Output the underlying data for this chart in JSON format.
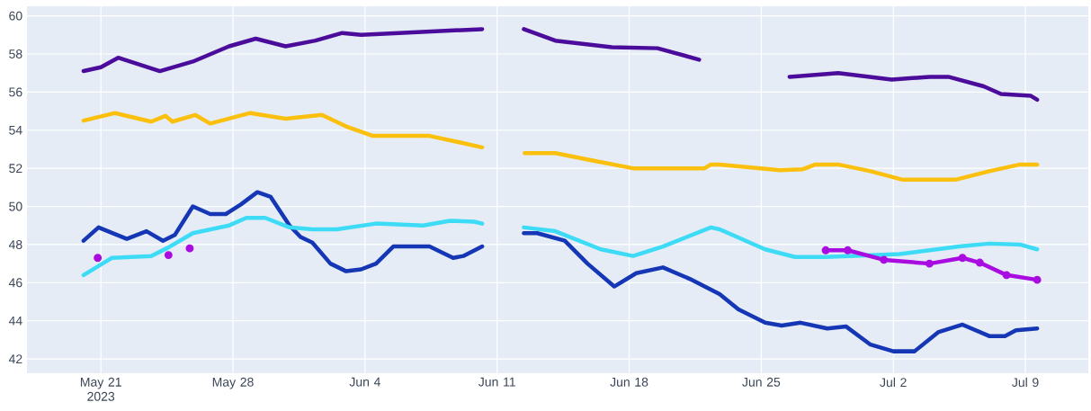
{
  "chart_data": {
    "type": "line",
    "grid": true,
    "xlim": [
      "2023-05-17T02:00",
      "2023-07-12T08:00"
    ],
    "ylim": [
      41.25,
      60.5
    ],
    "xticks": [
      {
        "value": "2023-05-21",
        "label": "May 21 2023"
      },
      {
        "value": "2023-05-28",
        "label": "May 28"
      },
      {
        "value": "2023-06-04",
        "label": "Jun 4"
      },
      {
        "value": "2023-06-11",
        "label": "Jun 11"
      },
      {
        "value": "2023-06-18",
        "label": "Jun 18"
      },
      {
        "value": "2023-06-25",
        "label": "Jun 25"
      },
      {
        "value": "2023-07-02",
        "label": "Jul 2"
      },
      {
        "value": "2023-07-09",
        "label": "Jul 9"
      }
    ],
    "yticks": [
      42,
      44,
      46,
      48,
      50,
      52,
      54,
      56,
      58,
      60
    ],
    "series": [
      {
        "color": "#4b0c9c",
        "x": [
          "2023-05-20T02:00",
          "2023-05-21T00:00",
          "2023-05-21T22:00",
          "2023-05-24T03:00",
          "2023-05-25T21:00",
          "2023-05-27T19:00",
          "2023-05-29T05:00",
          "2023-05-30T19:00",
          "2023-06-01T09:00",
          "2023-06-02T19:00",
          "2023-06-03T19:00",
          "2023-06-05T19:00",
          "2023-06-10T05:00",
          "2023-06-11T08:00",
          "2023-06-12T10:00",
          "2023-06-14T02:00",
          "2023-06-17T02:00",
          "2023-06-19T12:00",
          "2023-06-21T17:00",
          "2023-06-24T00:00",
          "2023-06-26T12:00",
          "2023-06-29T02:00",
          "2023-07-01T22:00",
          "2023-07-03T22:00",
          "2023-07-04T22:00",
          "2023-07-06T19:00",
          "2023-07-07T17:00",
          "2023-07-09T07:00",
          "2023-07-09T15:00"
        ],
        "values": [
          57.1,
          57.3,
          57.8,
          57.1,
          57.6,
          58.4,
          58.8,
          58.4,
          58.7,
          59.1,
          59.0,
          59.1,
          59.3,
          null,
          59.3,
          58.7,
          58.35,
          58.3,
          57.7,
          null,
          56.8,
          57.0,
          56.65,
          56.8,
          56.8,
          56.3,
          55.9,
          55.8,
          55.6
        ]
      },
      {
        "color": "#fbbf0e",
        "x": [
          "2023-05-20T02:00",
          "2023-05-21T18:00",
          "2023-05-23T16:00",
          "2023-05-24T10:00",
          "2023-05-24T19:00",
          "2023-05-26T00:00",
          "2023-05-26T19:00",
          "2023-05-28T22:00",
          "2023-05-30T19:00",
          "2023-06-01T17:00",
          "2023-06-03T00:00",
          "2023-06-04T10:00",
          "2023-06-07T10:00",
          "2023-06-08T20:00",
          "2023-06-10T05:00",
          "2023-06-11T08:00",
          "2023-06-12T11:00",
          "2023-06-14T02:00",
          "2023-06-16T03:00",
          "2023-06-18T05:00",
          "2023-06-22T00:00",
          "2023-06-22T08:00",
          "2023-06-22T19:00",
          "2023-06-26T00:00",
          "2023-06-27T05:00",
          "2023-06-27T21:00",
          "2023-06-29T02:00",
          "2023-06-30T19:00",
          "2023-07-02T12:00",
          "2023-07-04T02:00",
          "2023-07-05T07:00",
          "2023-07-07T02:00",
          "2023-07-08T17:00",
          "2023-07-09T15:00"
        ],
        "values": [
          54.5,
          54.9,
          54.45,
          54.75,
          54.45,
          54.8,
          54.35,
          54.9,
          54.6,
          54.8,
          54.2,
          53.7,
          53.7,
          53.4,
          53.1,
          null,
          52.8,
          52.8,
          52.4,
          52.0,
          52.0,
          52.2,
          52.2,
          51.9,
          51.95,
          52.2,
          52.2,
          51.85,
          51.4,
          51.4,
          51.4,
          51.85,
          52.2,
          52.2
        ]
      },
      {
        "color": "#1537b5",
        "x": [
          "2023-05-20T02:00",
          "2023-05-20T21:00",
          "2023-05-22T09:00",
          "2023-05-23T10:00",
          "2023-05-24T07:00",
          "2023-05-24T22:00",
          "2023-05-25T21:00",
          "2023-05-26T19:00",
          "2023-05-27T15:00",
          "2023-05-28T10:00",
          "2023-05-29T07:00",
          "2023-05-30T00:00",
          "2023-05-31T00:00",
          "2023-05-31T14:00",
          "2023-06-01T05:00",
          "2023-06-02T04:00",
          "2023-06-03T00:00",
          "2023-06-03T19:00",
          "2023-06-04T14:00",
          "2023-06-05T12:00",
          "2023-06-07T10:00",
          "2023-06-08T16:00",
          "2023-06-09T05:00",
          "2023-06-10T05:00",
          "2023-06-11T08:00",
          "2023-06-12T10:00",
          "2023-06-13T03:00",
          "2023-06-14T14:00",
          "2023-06-15T19:00",
          "2023-06-17T05:00",
          "2023-06-18T09:00",
          "2023-06-19T19:00",
          "2023-06-21T05:00",
          "2023-06-22T19:00",
          "2023-06-23T19:00",
          "2023-06-25T05:00",
          "2023-06-26T02:00",
          "2023-06-27T02:00",
          "2023-06-28T12:00",
          "2023-06-29T12:00",
          "2023-06-30T19:00",
          "2023-07-02T00:00",
          "2023-07-03T03:00",
          "2023-07-04T09:00",
          "2023-07-05T16:00",
          "2023-07-07T02:00",
          "2023-07-07T22:00",
          "2023-07-08T12:00",
          "2023-07-09T15:00"
        ],
        "values": [
          48.2,
          48.9,
          48.3,
          48.7,
          48.2,
          48.5,
          50.0,
          49.6,
          49.6,
          50.1,
          50.75,
          50.5,
          49.0,
          48.4,
          48.1,
          47.0,
          46.6,
          46.7,
          47.0,
          47.9,
          47.9,
          47.3,
          47.4,
          47.9,
          null,
          48.6,
          48.6,
          48.2,
          47.0,
          45.8,
          46.5,
          46.8,
          46.2,
          45.4,
          44.6,
          43.9,
          43.75,
          43.9,
          43.6,
          43.7,
          42.75,
          42.4,
          42.4,
          43.4,
          43.8,
          43.2,
          43.2,
          43.5,
          43.6
        ]
      },
      {
        "color": "#3ddbf5",
        "x": [
          "2023-05-20T02:00",
          "2023-05-21T02:00",
          "2023-05-21T14:00",
          "2023-05-23T16:00",
          "2023-05-24T14:00",
          "2023-05-25T21:00",
          "2023-05-27T19:00",
          "2023-05-28T17:00",
          "2023-05-29T17:00",
          "2023-05-31T00:00",
          "2023-06-01T05:00",
          "2023-06-02T12:00",
          "2023-06-04T14:00",
          "2023-06-07T02:00",
          "2023-06-08T12:00",
          "2023-06-09T19:00",
          "2023-06-10T05:00",
          "2023-06-11T08:00",
          "2023-06-12T10:00",
          "2023-06-14T02:00",
          "2023-06-16T12:00",
          "2023-06-18T05:00",
          "2023-06-19T19:00",
          "2023-06-22T08:00",
          "2023-06-22T19:00",
          "2023-06-25T05:00",
          "2023-06-26T19:00",
          "2023-06-28T10:00",
          "2023-07-02T08:00",
          "2023-07-05T12:00",
          "2023-07-07T02:00",
          "2023-07-08T17:00",
          "2023-07-09T15:00"
        ],
        "values": [
          46.4,
          47.0,
          47.3,
          47.4,
          47.85,
          48.6,
          49.0,
          49.4,
          49.4,
          48.9,
          48.8,
          48.8,
          49.1,
          49.0,
          49.25,
          49.2,
          49.1,
          null,
          48.9,
          48.7,
          47.75,
          47.4,
          47.9,
          48.9,
          48.8,
          47.75,
          47.35,
          47.35,
          47.5,
          47.9,
          48.05,
          48.0,
          47.75
        ]
      },
      {
        "color": "#a90ce0",
        "marker": "circle",
        "x": [
          "2023-05-20T20:00",
          "2023-05-22T00:00",
          "2023-05-24T14:00",
          "2023-05-25T00:00",
          "2023-05-25T17:00",
          "2023-06-01T00:00",
          "2023-06-28T10:00",
          "2023-06-29T14:00",
          "2023-07-01T12:00",
          "2023-07-03T22:00",
          "2023-07-05T16:00",
          "2023-07-06T14:00",
          "2023-07-08T00:00",
          "2023-07-09T15:00"
        ],
        "values": [
          47.3,
          null,
          47.45,
          null,
          47.8,
          null,
          47.7,
          47.7,
          47.2,
          47.0,
          47.3,
          47.05,
          46.4,
          46.15
        ]
      }
    ]
  }
}
